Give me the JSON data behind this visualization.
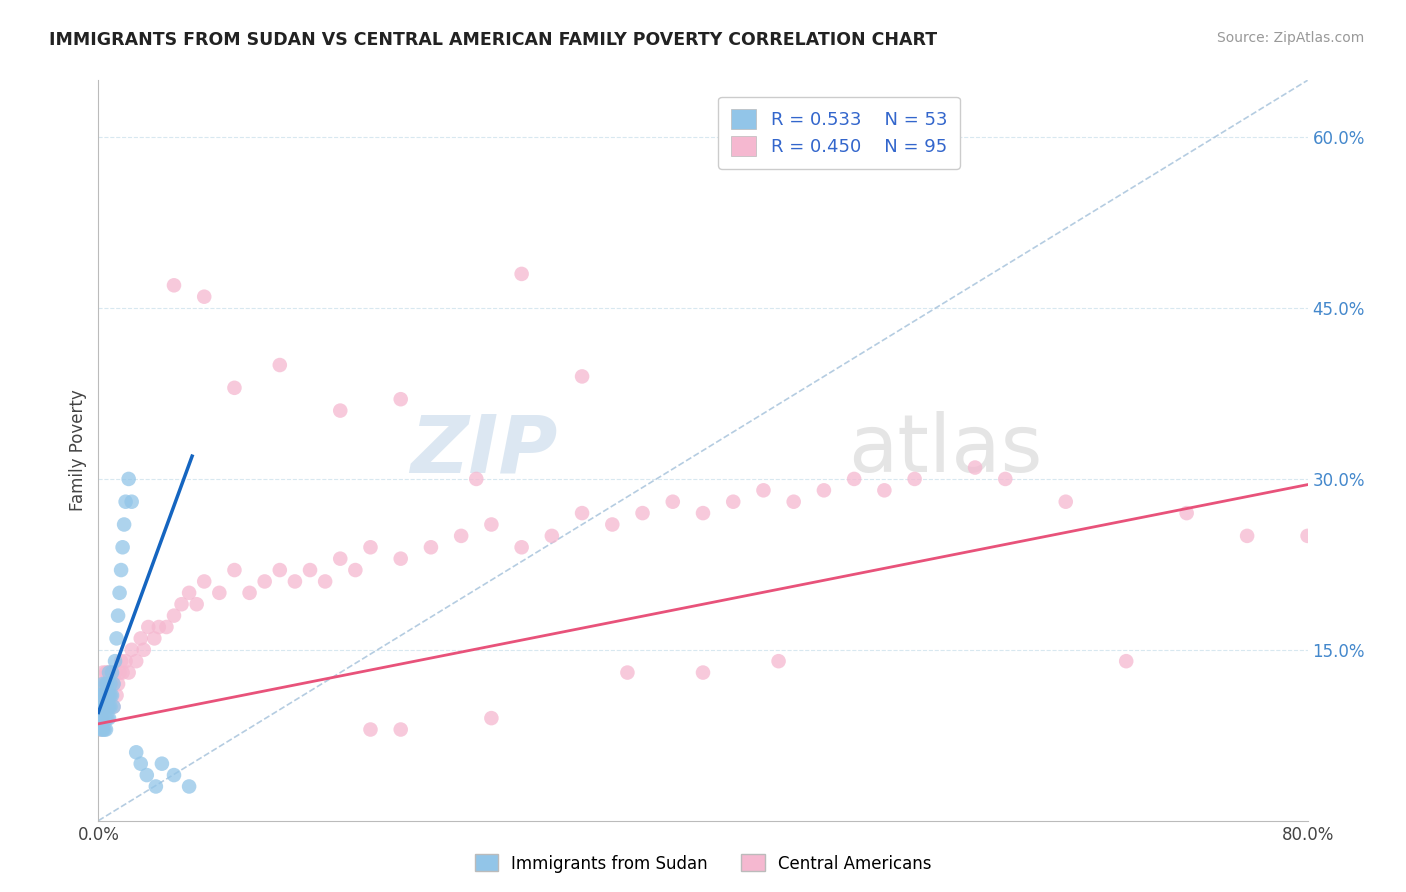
{
  "title": "IMMIGRANTS FROM SUDAN VS CENTRAL AMERICAN FAMILY POVERTY CORRELATION CHART",
  "source": "Source: ZipAtlas.com",
  "ylabel": "Family Poverty",
  "xlim": [
    0.0,
    0.8
  ],
  "ylim": [
    0.0,
    0.65
  ],
  "legend1_label": "Immigrants from Sudan",
  "legend2_label": "Central Americans",
  "R_sudan": 0.533,
  "N_sudan": 53,
  "R_central": 0.45,
  "N_central": 95,
  "color_sudan": "#92C5E8",
  "color_central": "#F5B8D0",
  "color_sudan_line": "#1565C0",
  "color_central_line": "#E8527A",
  "background_color": "#FFFFFF",
  "grid_color": "#D8E8F0",
  "sudan_x": [
    0.001,
    0.001,
    0.001,
    0.002,
    0.002,
    0.002,
    0.002,
    0.003,
    0.003,
    0.003,
    0.003,
    0.003,
    0.004,
    0.004,
    0.004,
    0.004,
    0.005,
    0.005,
    0.005,
    0.005,
    0.005,
    0.006,
    0.006,
    0.006,
    0.006,
    0.007,
    0.007,
    0.007,
    0.007,
    0.008,
    0.008,
    0.008,
    0.009,
    0.009,
    0.01,
    0.01,
    0.011,
    0.012,
    0.013,
    0.014,
    0.015,
    0.016,
    0.017,
    0.018,
    0.02,
    0.022,
    0.025,
    0.028,
    0.032,
    0.038,
    0.042,
    0.05,
    0.06
  ],
  "sudan_y": [
    0.09,
    0.1,
    0.11,
    0.08,
    0.09,
    0.1,
    0.11,
    0.08,
    0.09,
    0.1,
    0.11,
    0.12,
    0.08,
    0.09,
    0.1,
    0.11,
    0.08,
    0.09,
    0.1,
    0.11,
    0.12,
    0.09,
    0.1,
    0.11,
    0.12,
    0.09,
    0.1,
    0.11,
    0.13,
    0.1,
    0.11,
    0.12,
    0.11,
    0.13,
    0.1,
    0.12,
    0.14,
    0.16,
    0.18,
    0.2,
    0.22,
    0.24,
    0.26,
    0.28,
    0.3,
    0.28,
    0.06,
    0.05,
    0.04,
    0.03,
    0.05,
    0.04,
    0.03
  ],
  "central_x": [
    0.001,
    0.001,
    0.002,
    0.002,
    0.002,
    0.003,
    0.003,
    0.003,
    0.004,
    0.004,
    0.004,
    0.005,
    0.005,
    0.005,
    0.006,
    0.006,
    0.007,
    0.007,
    0.008,
    0.008,
    0.009,
    0.01,
    0.01,
    0.011,
    0.012,
    0.013,
    0.014,
    0.015,
    0.016,
    0.018,
    0.02,
    0.022,
    0.025,
    0.028,
    0.03,
    0.033,
    0.037,
    0.04,
    0.045,
    0.05,
    0.055,
    0.06,
    0.065,
    0.07,
    0.08,
    0.09,
    0.1,
    0.11,
    0.12,
    0.13,
    0.14,
    0.15,
    0.16,
    0.17,
    0.18,
    0.2,
    0.22,
    0.24,
    0.26,
    0.28,
    0.3,
    0.32,
    0.34,
    0.36,
    0.38,
    0.4,
    0.42,
    0.44,
    0.46,
    0.48,
    0.5,
    0.52,
    0.54,
    0.58,
    0.6,
    0.64,
    0.68,
    0.72,
    0.76,
    0.8,
    0.05,
    0.07,
    0.09,
    0.12,
    0.16,
    0.2,
    0.25,
    0.35,
    0.4,
    0.45,
    0.28,
    0.32,
    0.2,
    0.26,
    0.18
  ],
  "central_y": [
    0.08,
    0.1,
    0.09,
    0.11,
    0.12,
    0.09,
    0.1,
    0.13,
    0.1,
    0.11,
    0.12,
    0.1,
    0.12,
    0.13,
    0.11,
    0.13,
    0.1,
    0.12,
    0.11,
    0.13,
    0.12,
    0.1,
    0.12,
    0.13,
    0.11,
    0.12,
    0.13,
    0.14,
    0.13,
    0.14,
    0.13,
    0.15,
    0.14,
    0.16,
    0.15,
    0.17,
    0.16,
    0.17,
    0.17,
    0.18,
    0.19,
    0.2,
    0.19,
    0.21,
    0.2,
    0.22,
    0.2,
    0.21,
    0.22,
    0.21,
    0.22,
    0.21,
    0.23,
    0.22,
    0.24,
    0.23,
    0.24,
    0.25,
    0.26,
    0.24,
    0.25,
    0.27,
    0.26,
    0.27,
    0.28,
    0.27,
    0.28,
    0.29,
    0.28,
    0.29,
    0.3,
    0.29,
    0.3,
    0.31,
    0.3,
    0.28,
    0.14,
    0.27,
    0.25,
    0.25,
    0.47,
    0.46,
    0.38,
    0.4,
    0.36,
    0.37,
    0.3,
    0.13,
    0.13,
    0.14,
    0.48,
    0.39,
    0.08,
    0.09,
    0.08
  ],
  "sudan_line_x": [
    0.0,
    0.062
  ],
  "sudan_line_y": [
    0.095,
    0.32
  ],
  "central_line_x": [
    0.0,
    0.8
  ],
  "central_line_y": [
    0.085,
    0.295
  ],
  "ref_line_x": [
    0.0,
    0.8
  ],
  "ref_line_y": [
    0.0,
    0.65
  ],
  "yticks": [
    0.15,
    0.3,
    0.45,
    0.6
  ],
  "ytick_labels": [
    "15.0%",
    "30.0%",
    "45.0%",
    "60.0%"
  ]
}
